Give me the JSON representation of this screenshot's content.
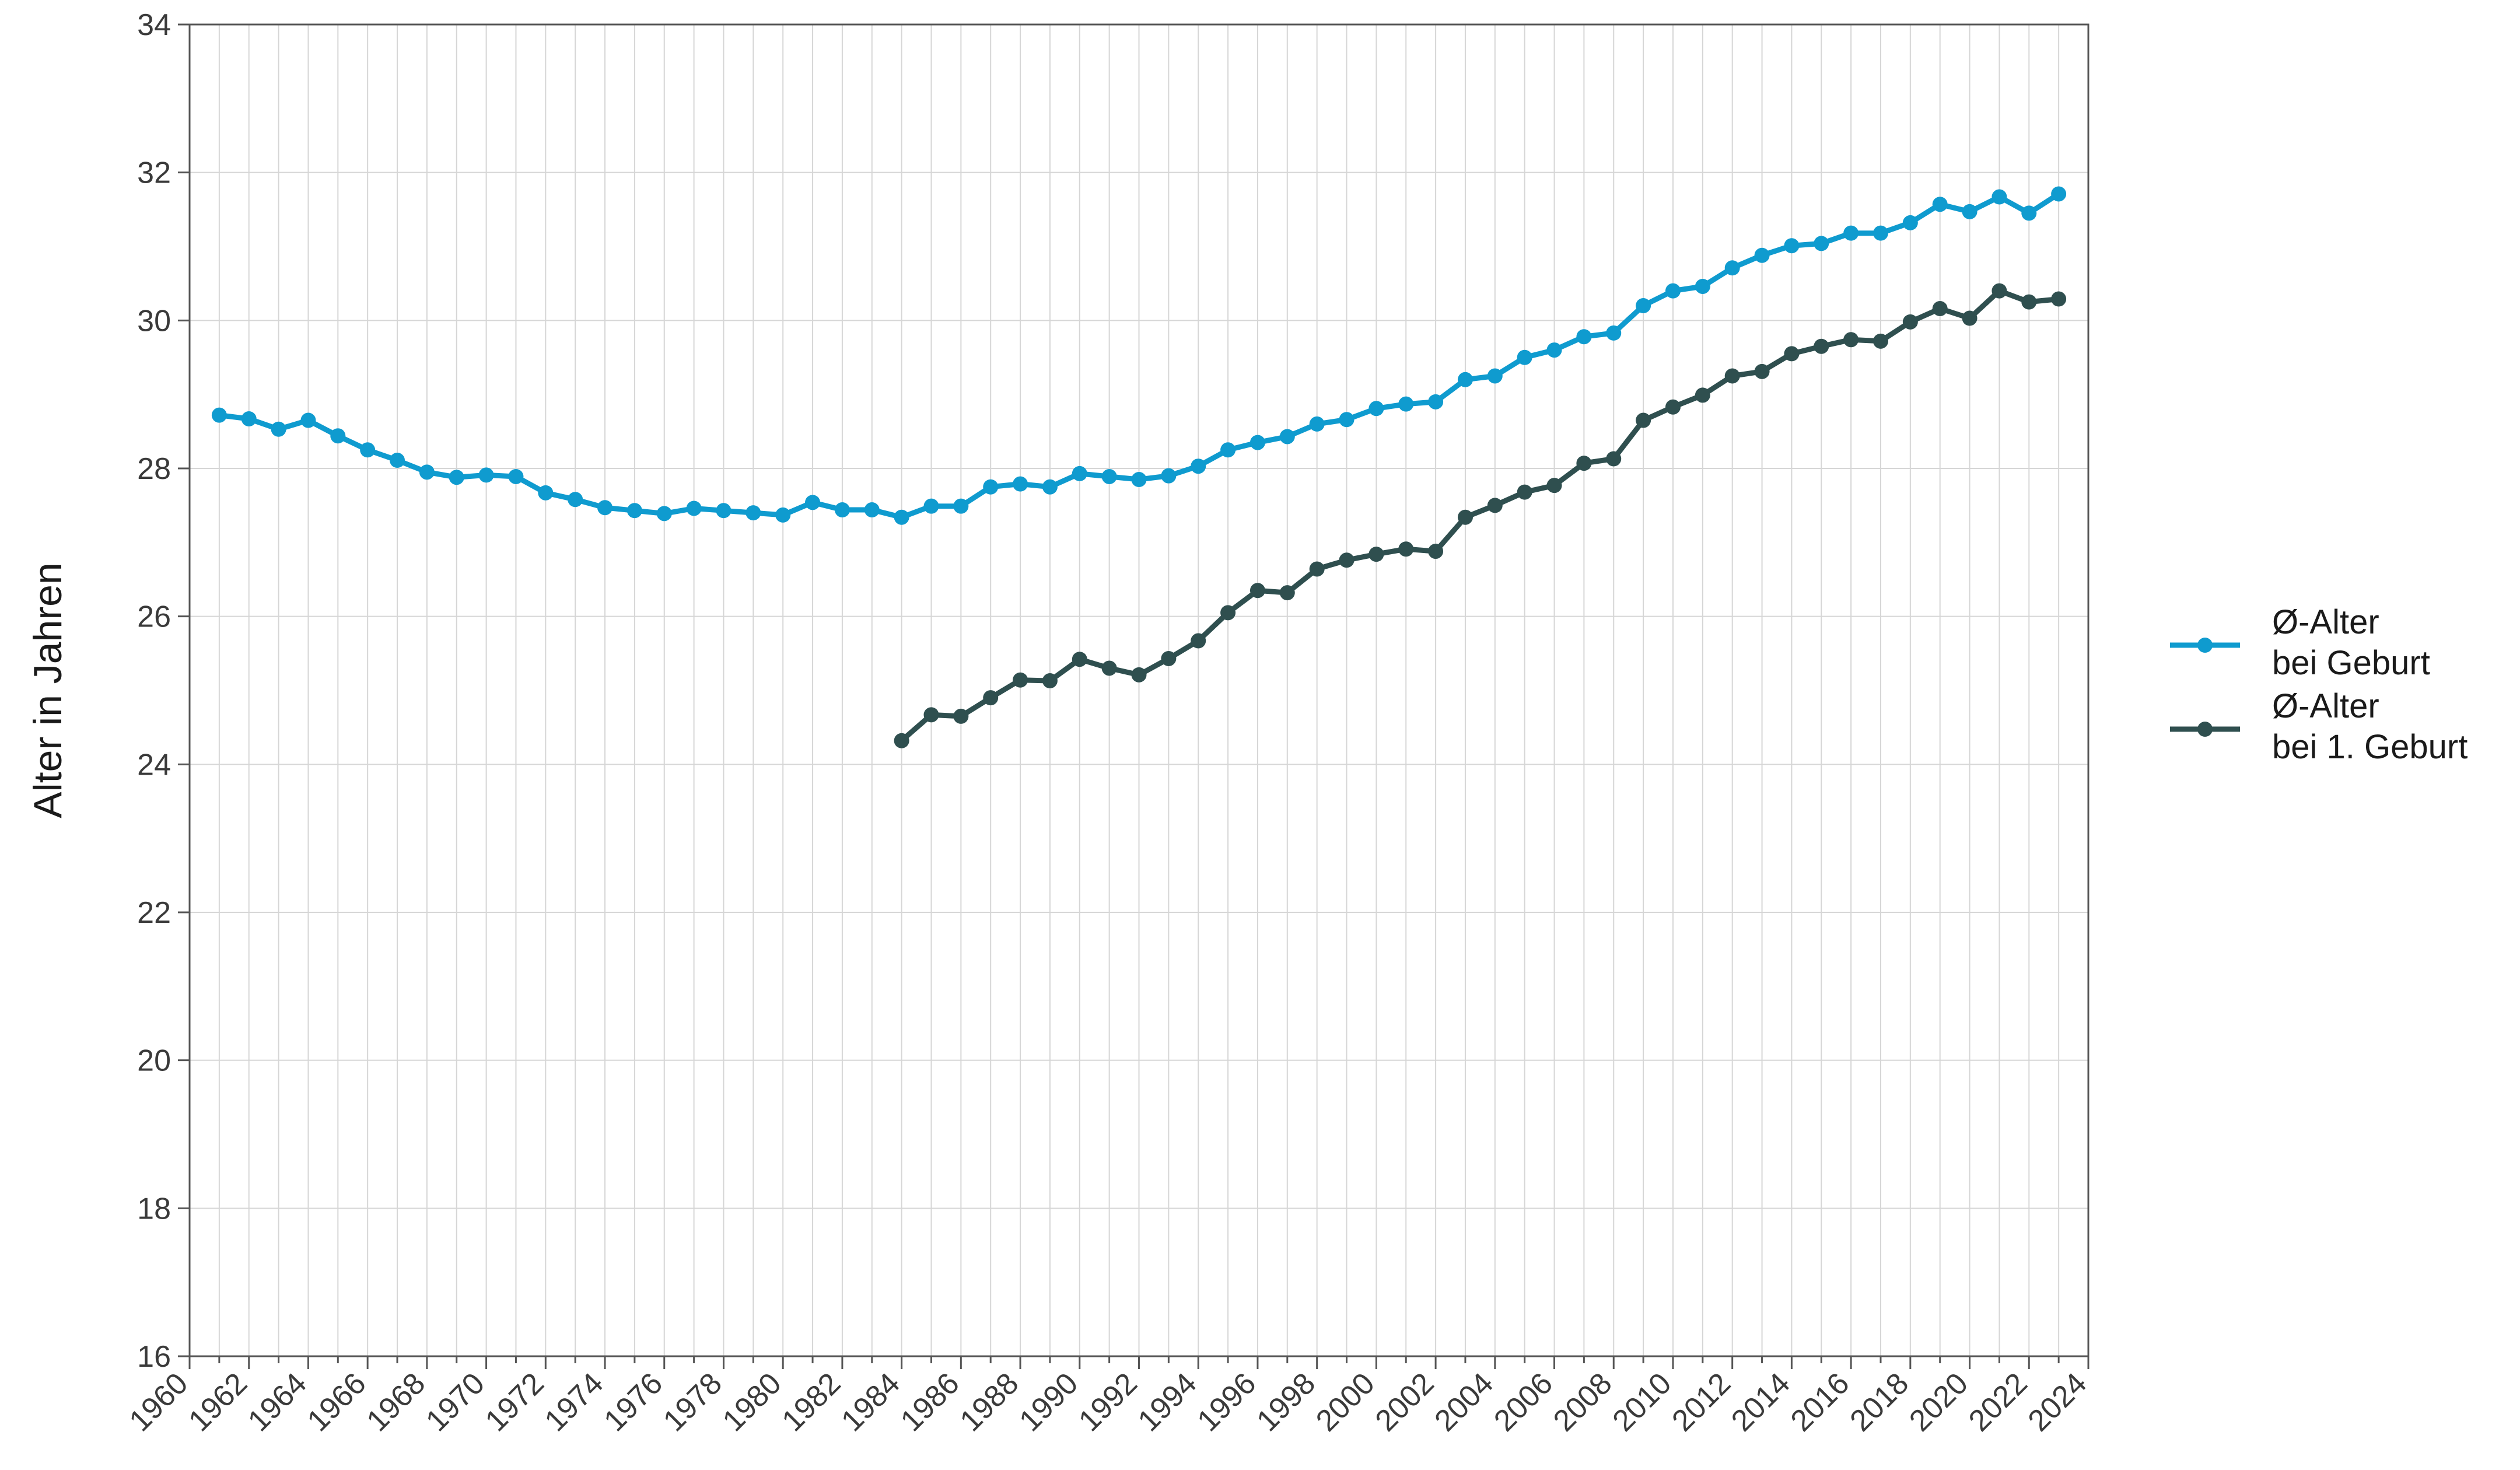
{
  "chart_data": {
    "type": "line",
    "ylabel": "Alter in Jahren",
    "xlim": [
      1960,
      2024
    ],
    "ylim": [
      16,
      34
    ],
    "x_ticks": [
      1960,
      1962,
      1964,
      1966,
      1968,
      1970,
      1972,
      1974,
      1976,
      1978,
      1980,
      1982,
      1984,
      1986,
      1988,
      1990,
      1992,
      1994,
      1996,
      1998,
      2000,
      2002,
      2004,
      2006,
      2008,
      2010,
      2012,
      2014,
      2016,
      2018,
      2020,
      2022,
      2024
    ],
    "y_ticks": [
      16,
      18,
      20,
      22,
      24,
      26,
      28,
      30,
      32,
      34
    ],
    "grid": true,
    "legend_position": "right",
    "series": [
      {
        "name_lines": [
          "Ø-Alter",
          "bei Geburt"
        ],
        "color": "#0f9bcf",
        "x": [
          1961,
          1962,
          1963,
          1964,
          1965,
          1966,
          1967,
          1968,
          1969,
          1970,
          1971,
          1972,
          1973,
          1974,
          1975,
          1976,
          1977,
          1978,
          1979,
          1980,
          1981,
          1982,
          1983,
          1984,
          1985,
          1986,
          1987,
          1988,
          1989,
          1990,
          1991,
          1992,
          1993,
          1994,
          1995,
          1996,
          1997,
          1998,
          1999,
          2000,
          2001,
          2002,
          2003,
          2004,
          2005,
          2006,
          2007,
          2008,
          2009,
          2010,
          2011,
          2012,
          2013,
          2014,
          2015,
          2016,
          2017,
          2018,
          2019,
          2020,
          2021,
          2022,
          2023
        ],
        "values": [
          28.72,
          28.67,
          28.53,
          28.65,
          28.44,
          28.25,
          28.11,
          27.95,
          27.88,
          27.91,
          27.89,
          27.67,
          27.58,
          27.47,
          27.43,
          27.39,
          27.46,
          27.43,
          27.4,
          27.37,
          27.54,
          27.44,
          27.44,
          27.34,
          27.49,
          27.49,
          27.75,
          27.79,
          27.75,
          27.93,
          27.89,
          27.85,
          27.9,
          28.03,
          28.25,
          28.35,
          28.43,
          28.6,
          28.66,
          28.81,
          28.87,
          28.9,
          29.2,
          29.25,
          29.5,
          29.6,
          29.78,
          29.83,
          30.2,
          30.4,
          30.46,
          30.71,
          30.88,
          31.01,
          31.04,
          31.18,
          31.18,
          31.32,
          31.57,
          31.47,
          31.67,
          31.45,
          31.71
        ]
      },
      {
        "name_lines": [
          "Ø-Alter",
          "bei 1. Geburt"
        ],
        "color": "#2f4f4f",
        "x": [
          1984,
          1985,
          1986,
          1987,
          1988,
          1989,
          1990,
          1991,
          1992,
          1993,
          1994,
          1995,
          1996,
          1997,
          1998,
          1999,
          2000,
          2001,
          2002,
          2003,
          2004,
          2005,
          2006,
          2007,
          2008,
          2009,
          2010,
          2011,
          2012,
          2013,
          2014,
          2015,
          2016,
          2017,
          2018,
          2019,
          2020,
          2021,
          2022,
          2023
        ],
        "values": [
          24.32,
          24.67,
          24.65,
          24.9,
          25.14,
          25.13,
          25.42,
          25.3,
          25.21,
          25.43,
          25.67,
          26.05,
          26.35,
          26.32,
          26.64,
          26.76,
          26.84,
          26.91,
          26.88,
          27.34,
          27.5,
          27.68,
          27.77,
          28.07,
          28.13,
          28.65,
          28.83,
          28.99,
          29.25,
          29.31,
          29.55,
          29.65,
          29.74,
          29.72,
          29.98,
          30.16,
          30.03,
          30.4,
          30.25,
          30.29
        ]
      }
    ]
  }
}
